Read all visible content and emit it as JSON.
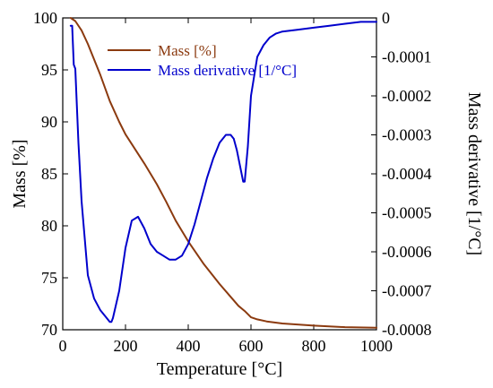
{
  "chart_data": {
    "type": "line",
    "title": "",
    "xlabel": "Temperature [°C]",
    "ylabel_left": "Mass [%]",
    "ylabel_right": "Mass derivative [1/°C]",
    "xlim": [
      0,
      1000
    ],
    "ylim_left": [
      70,
      100
    ],
    "ylim_right": [
      -0.0008,
      0
    ],
    "x_ticks": [
      0,
      200,
      400,
      600,
      800,
      1000
    ],
    "y_left_ticks": [
      70,
      75,
      80,
      85,
      90,
      95,
      100
    ],
    "y_right_ticks": [
      0,
      -0.0001,
      -0.0002,
      -0.0003,
      -0.0004,
      -0.0005,
      -0.0006,
      -0.0007,
      -0.0008
    ],
    "y_right_tick_labels": [
      "0",
      "-0.0001",
      "-0.0002",
      "-0.0003",
      "-0.0004",
      "-0.0005",
      "-0.0006",
      "-0.0007",
      "-0.0008"
    ],
    "grid": false,
    "legend_position": "top-center",
    "series": [
      {
        "name": "Mass [%]",
        "axis": "left",
        "color": "#8b3a0f",
        "x": [
          25,
          40,
          60,
          80,
          100,
          120,
          150,
          180,
          200,
          230,
          260,
          300,
          330,
          360,
          400,
          450,
          500,
          540,
          560,
          580,
          600,
          620,
          650,
          700,
          800,
          900,
          1000
        ],
        "y": [
          100,
          99.7,
          98.8,
          97.5,
          96.0,
          94.5,
          92.0,
          90.0,
          88.8,
          87.4,
          86.0,
          84.0,
          82.3,
          80.5,
          78.5,
          76.3,
          74.4,
          73.0,
          72.3,
          71.8,
          71.2,
          71.0,
          70.8,
          70.6,
          70.4,
          70.25,
          70.2
        ]
      },
      {
        "name": "Mass derivative [1/°C]",
        "axis": "right",
        "color": "#0000cc",
        "x": [
          25,
          30,
          35,
          40,
          50,
          60,
          80,
          100,
          120,
          140,
          150,
          155,
          160,
          180,
          200,
          220,
          240,
          260,
          280,
          300,
          320,
          340,
          360,
          380,
          400,
          420,
          440,
          460,
          480,
          500,
          520,
          535,
          545,
          555,
          565,
          575,
          580,
          590,
          600,
          620,
          640,
          660,
          680,
          700,
          750,
          800,
          850,
          900,
          950,
          1000
        ],
        "y": [
          -2e-05,
          -2e-05,
          -0.00012,
          -0.00013,
          -0.00032,
          -0.00047,
          -0.00066,
          -0.00072,
          -0.00075,
          -0.00077,
          -0.00078,
          -0.00078,
          -0.00077,
          -0.0007,
          -0.00059,
          -0.00052,
          -0.00051,
          -0.00054,
          -0.00058,
          -0.0006,
          -0.00061,
          -0.00062,
          -0.00062,
          -0.00061,
          -0.00058,
          -0.00053,
          -0.00047,
          -0.00041,
          -0.00036,
          -0.00032,
          -0.0003,
          -0.0003,
          -0.00031,
          -0.00034,
          -0.00038,
          -0.00042,
          -0.00042,
          -0.00033,
          -0.0002,
          -0.0001,
          -7e-05,
          -5e-05,
          -4e-05,
          -3.5e-05,
          -3e-05,
          -2.5e-05,
          -2e-05,
          -1.5e-05,
          -1e-05,
          -1e-05
        ]
      }
    ]
  }
}
